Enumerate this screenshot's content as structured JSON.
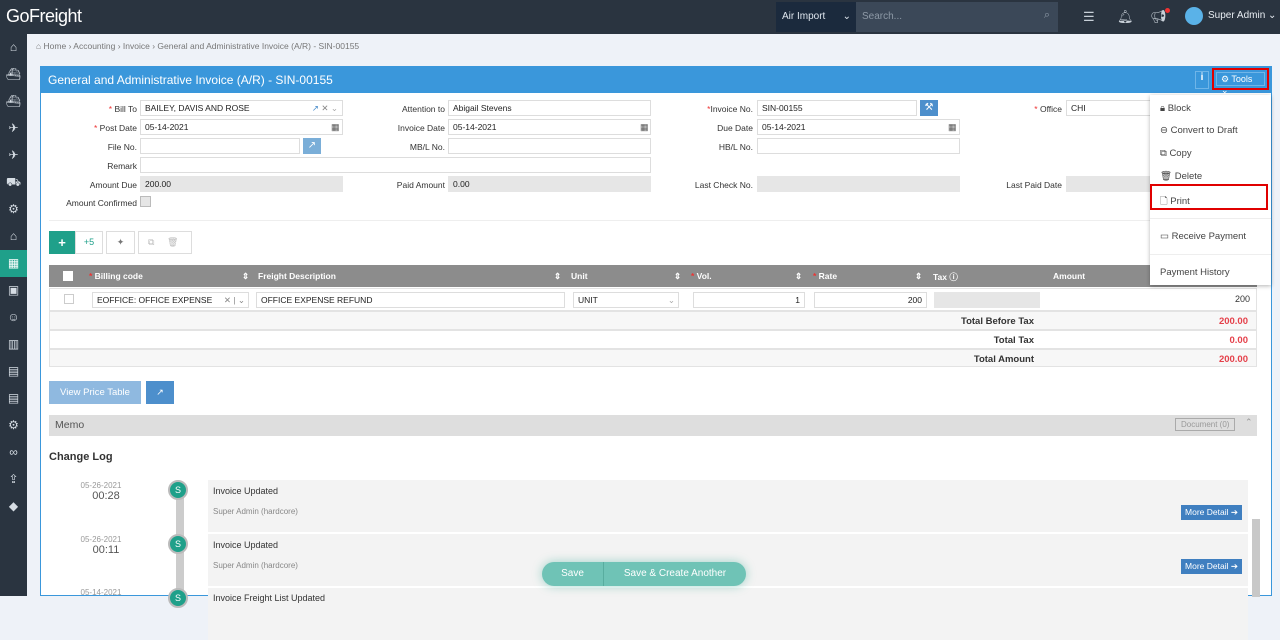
{
  "app": {
    "logo": "GoFreight",
    "mode": "Air Import",
    "search_placeholder": "Search...",
    "user": "Super Admin"
  },
  "sidebar": {
    "icons": [
      "home-icon",
      "ocean-export-icon",
      "ocean-import-icon",
      "air-export-icon",
      "air-import-icon",
      "truck-icon",
      "warehouse-icon",
      "building-icon",
      "accounting-icon",
      "briefcase-icon",
      "contacts-icon",
      "report-icon",
      "document-icon",
      "book-icon",
      "settings-icon",
      "link-icon",
      "export-icon",
      "diamond-icon"
    ],
    "active": 8
  },
  "breadcrumb": [
    "Home",
    "Accounting",
    "Invoice",
    "General and Administrative Invoice (A/R) - SIN-00155"
  ],
  "panel": {
    "title": "General and Administrative Invoice (A/R) - SIN-00155",
    "info": "i",
    "tools": "Tools"
  },
  "form": {
    "bill_to_label": "Bill To",
    "bill_to": "BAILEY, DAVIS AND ROSE",
    "attention_label": "Attention to",
    "attention": "Abigail Stevens",
    "invoice_no_label": "Invoice No.",
    "invoice_no": "SIN-00155",
    "office_label": "Office",
    "office": "CHI",
    "post_date_label": "Post Date",
    "post_date": "05-14-2021",
    "invoice_date_label": "Invoice Date",
    "invoice_date": "05-14-2021",
    "due_date_label": "Due Date",
    "due_date": "05-14-2021",
    "file_no_label": "File No.",
    "file_no": "",
    "mbl_label": "MB/L No.",
    "mbl": "",
    "hbl_label": "HB/L No.",
    "hbl": "",
    "remark_label": "Remark",
    "remark": "",
    "amount_due_label": "Amount Due",
    "amount_due": "200.00",
    "paid_label": "Paid Amount",
    "paid": "0.00",
    "check_label": "Last Check No.",
    "check": "",
    "paid_date_label": "Last Paid Date",
    "paid_date": "",
    "confirmed_label": "Amount Confirmed"
  },
  "toolbar": {
    "add5": "+5"
  },
  "table": {
    "headers": [
      "Billing code",
      "Freight Description",
      "Unit",
      "Vol.",
      "Rate",
      "Tax",
      "Amount"
    ],
    "rows": [
      {
        "billing_code": "EOFFICE: OFFICE EXPENSE",
        "description": "OFFICE EXPENSE REFUND",
        "unit": "UNIT",
        "vol": "1",
        "rate": "200",
        "tax": "",
        "amount": "200"
      }
    ],
    "totals": [
      {
        "label": "Total Before Tax",
        "value": "200.00"
      },
      {
        "label": "Total Tax",
        "value": "0.00"
      },
      {
        "label": "Total Amount",
        "value": "200.00"
      }
    ]
  },
  "buttons": {
    "view_price_table": "View Price Table",
    "save": "Save",
    "save_create": "Save & Create Another"
  },
  "memo": {
    "title": "Memo",
    "document": "Document (0)"
  },
  "changelog": {
    "title": "Change Log",
    "entries": [
      {
        "date": "05-26-2021",
        "time": "00:28",
        "avatar": "S",
        "title": "Invoice Updated",
        "user": "Super Admin (hardcore)",
        "more": "More Detail"
      },
      {
        "date": "05-26-2021",
        "time": "00:11",
        "avatar": "S",
        "title": "Invoice Updated",
        "user": "Super Admin (hardcore)",
        "more": "More Detail"
      },
      {
        "date": "05-14-2021",
        "time": "",
        "avatar": "S",
        "title": "Invoice Freight List Updated",
        "user": "",
        "more": ""
      }
    ]
  },
  "tools_menu": [
    "Block",
    "Convert to Draft",
    "Copy",
    "Delete",
    "Print",
    "Receive Payment",
    "Payment History"
  ],
  "colors": {
    "brand_blue": "#3a97db",
    "teal": "#1fa08a",
    "highlight": "#e00000",
    "total_red": "#e5404a"
  }
}
